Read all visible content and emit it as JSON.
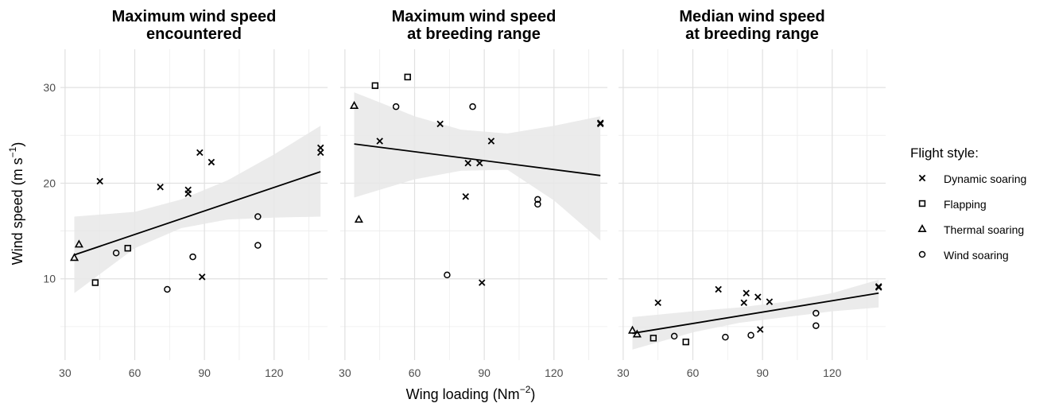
{
  "chart_data": {
    "type": "scatter",
    "xlabel": "Wing loading (Nm⁻²)",
    "xlabel_parts": {
      "base": "Wing loading (Nm",
      "sup": "−2",
      "tail": ")"
    },
    "ylabel_parts": {
      "base": "Wind speed (m s",
      "sup": "−1",
      "tail": ")"
    },
    "xlim": [
      28,
      143
    ],
    "ylim": [
      1.5,
      34
    ],
    "x_ticks": [
      30,
      60,
      90,
      120
    ],
    "y_ticks": [
      10,
      20,
      30
    ],
    "grid": true,
    "legend": {
      "title": "Flight style:",
      "placement": "right",
      "entries": [
        "Dynamic soaring",
        "Flapping",
        "Thermal soaring",
        "Wind soaring"
      ]
    },
    "panels": [
      {
        "title_lines": [
          "Maximum wind speed",
          "encountered"
        ],
        "fit": {
          "x": [
            34,
            140
          ],
          "y": [
            12.5,
            21.2
          ]
        },
        "band": {
          "x": [
            34,
            60,
            80,
            100,
            120,
            140
          ],
          "upper": [
            16.5,
            17.0,
            18.3,
            20.3,
            23.0,
            26.0
          ],
          "lower": [
            8.5,
            13.2,
            15.3,
            16.2,
            16.4,
            16.5
          ]
        },
        "points": [
          {
            "style": "Dynamic soaring",
            "x": 45,
            "y": 20.2
          },
          {
            "style": "Dynamic soaring",
            "x": 71,
            "y": 19.6
          },
          {
            "style": "Dynamic soaring",
            "x": 83,
            "y": 18.9
          },
          {
            "style": "Dynamic soaring",
            "x": 83,
            "y": 19.3
          },
          {
            "style": "Dynamic soaring",
            "x": 88,
            "y": 23.2
          },
          {
            "style": "Dynamic soaring",
            "x": 93,
            "y": 22.2
          },
          {
            "style": "Dynamic soaring",
            "x": 89,
            "y": 10.2
          },
          {
            "style": "Dynamic soaring",
            "x": 140,
            "y": 23.7
          },
          {
            "style": "Dynamic soaring",
            "x": 140,
            "y": 23.2
          },
          {
            "style": "Flapping",
            "x": 43,
            "y": 9.6
          },
          {
            "style": "Flapping",
            "x": 57,
            "y": 13.2
          },
          {
            "style": "Thermal soaring",
            "x": 34,
            "y": 12.2
          },
          {
            "style": "Thermal soaring",
            "x": 36,
            "y": 13.6
          },
          {
            "style": "Wind soaring",
            "x": 52,
            "y": 12.7
          },
          {
            "style": "Wind soaring",
            "x": 74,
            "y": 8.9
          },
          {
            "style": "Wind soaring",
            "x": 85,
            "y": 12.3
          },
          {
            "style": "Wind soaring",
            "x": 113,
            "y": 16.5
          },
          {
            "style": "Wind soaring",
            "x": 113,
            "y": 13.5
          }
        ]
      },
      {
        "title_lines": [
          "Maximum wind speed",
          "at breeding range"
        ],
        "fit": {
          "x": [
            34,
            140
          ],
          "y": [
            24.1,
            20.8
          ]
        },
        "band": {
          "x": [
            34,
            60,
            80,
            100,
            120,
            140
          ],
          "upper": [
            29.5,
            27.0,
            25.6,
            25.2,
            26.0,
            27.0
          ],
          "lower": [
            18.5,
            20.4,
            21.3,
            21.4,
            18.2,
            14.0
          ]
        },
        "points": [
          {
            "style": "Dynamic soaring",
            "x": 45,
            "y": 24.4
          },
          {
            "style": "Dynamic soaring",
            "x": 71,
            "y": 26.2
          },
          {
            "style": "Dynamic soaring",
            "x": 83,
            "y": 22.1
          },
          {
            "style": "Dynamic soaring",
            "x": 88,
            "y": 22.1
          },
          {
            "style": "Dynamic soaring",
            "x": 93,
            "y": 24.4
          },
          {
            "style": "Dynamic soaring",
            "x": 82,
            "y": 18.6
          },
          {
            "style": "Dynamic soaring",
            "x": 89,
            "y": 9.6
          },
          {
            "style": "Dynamic soaring",
            "x": 140,
            "y": 26.3
          },
          {
            "style": "Dynamic soaring",
            "x": 140,
            "y": 26.2
          },
          {
            "style": "Flapping",
            "x": 43,
            "y": 30.2
          },
          {
            "style": "Flapping",
            "x": 57,
            "y": 31.1
          },
          {
            "style": "Thermal soaring",
            "x": 34,
            "y": 28.1
          },
          {
            "style": "Thermal soaring",
            "x": 36,
            "y": 16.2
          },
          {
            "style": "Wind soaring",
            "x": 52,
            "y": 28.0
          },
          {
            "style": "Wind soaring",
            "x": 85,
            "y": 28.0
          },
          {
            "style": "Wind soaring",
            "x": 74,
            "y": 10.4
          },
          {
            "style": "Wind soaring",
            "x": 113,
            "y": 18.3
          },
          {
            "style": "Wind soaring",
            "x": 113,
            "y": 17.8
          }
        ]
      },
      {
        "title_lines": [
          "Median wind speed",
          "at breeding range"
        ],
        "fit": {
          "x": [
            34,
            140
          ],
          "y": [
            4.3,
            8.5
          ]
        },
        "band": {
          "x": [
            34,
            60,
            80,
            100,
            120,
            140
          ],
          "upper": [
            6.0,
            6.6,
            7.0,
            7.6,
            8.5,
            9.9
          ],
          "lower": [
            2.6,
            4.4,
            5.4,
            6.0,
            6.6,
            7.0
          ]
        },
        "points": [
          {
            "style": "Dynamic soaring",
            "x": 45,
            "y": 7.5
          },
          {
            "style": "Dynamic soaring",
            "x": 71,
            "y": 8.9
          },
          {
            "style": "Dynamic soaring",
            "x": 83,
            "y": 8.5
          },
          {
            "style": "Dynamic soaring",
            "x": 82,
            "y": 7.5
          },
          {
            "style": "Dynamic soaring",
            "x": 88,
            "y": 8.1
          },
          {
            "style": "Dynamic soaring",
            "x": 93,
            "y": 7.6
          },
          {
            "style": "Dynamic soaring",
            "x": 89,
            "y": 4.7
          },
          {
            "style": "Dynamic soaring",
            "x": 140,
            "y": 9.2
          },
          {
            "style": "Dynamic soaring",
            "x": 140,
            "y": 9.1
          },
          {
            "style": "Flapping",
            "x": 43,
            "y": 3.8
          },
          {
            "style": "Flapping",
            "x": 57,
            "y": 3.4
          },
          {
            "style": "Thermal soaring",
            "x": 34,
            "y": 4.6
          },
          {
            "style": "Thermal soaring",
            "x": 36,
            "y": 4.2
          },
          {
            "style": "Wind soaring",
            "x": 52,
            "y": 4.0
          },
          {
            "style": "Wind soaring",
            "x": 74,
            "y": 3.9
          },
          {
            "style": "Wind soaring",
            "x": 85,
            "y": 4.1
          },
          {
            "style": "Wind soaring",
            "x": 113,
            "y": 6.4
          },
          {
            "style": "Wind soaring",
            "x": 113,
            "y": 5.1
          }
        ]
      }
    ]
  }
}
